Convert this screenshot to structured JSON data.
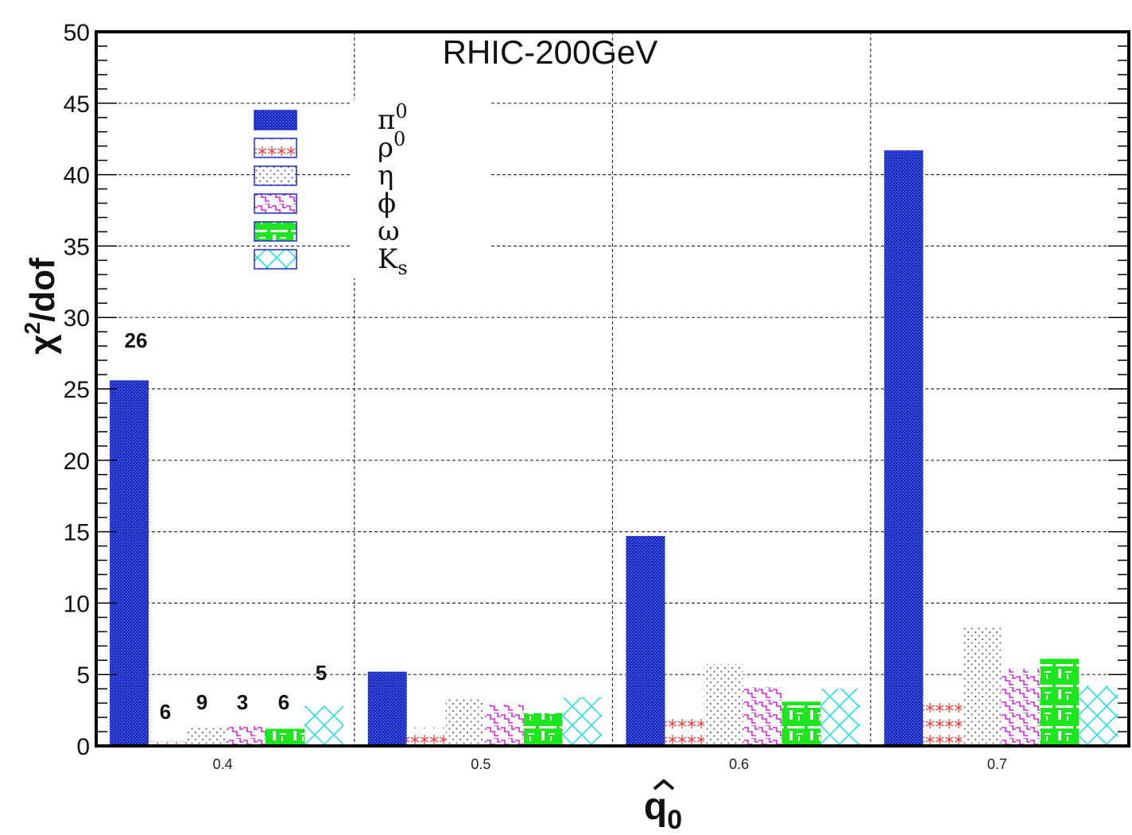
{
  "chart_data": {
    "type": "bar",
    "title": "RHIC-200GeV",
    "xlabel": "q̂0",
    "ylabel": "χ2/dof",
    "ylim": [
      0,
      50
    ],
    "yticks": [
      0,
      5,
      10,
      15,
      20,
      25,
      30,
      35,
      40,
      45,
      50
    ],
    "categories": [
      "0.4",
      "0.5",
      "0.6",
      "0.7"
    ],
    "grid": true,
    "legend_position": "top-left",
    "series": [
      {
        "name": "π0",
        "values": [
          25.6,
          5.2,
          14.7,
          41.7
        ]
      },
      {
        "name": "ρ0",
        "values": [
          0.3,
          1.3,
          2.3,
          3.2
        ]
      },
      {
        "name": "η",
        "values": [
          1.4,
          3.3,
          5.7,
          8.4
        ]
      },
      {
        "name": "ϕ",
        "values": [
          1.4,
          2.9,
          4.1,
          5.4
        ]
      },
      {
        "name": "ω",
        "values": [
          1.2,
          2.3,
          3.1,
          6.1
        ]
      },
      {
        "name": "Ks",
        "values": [
          2.8,
          3.4,
          4.0,
          4.2
        ]
      }
    ],
    "annotations": [
      "26",
      "6",
      "9",
      "3",
      "6",
      "5"
    ]
  }
}
